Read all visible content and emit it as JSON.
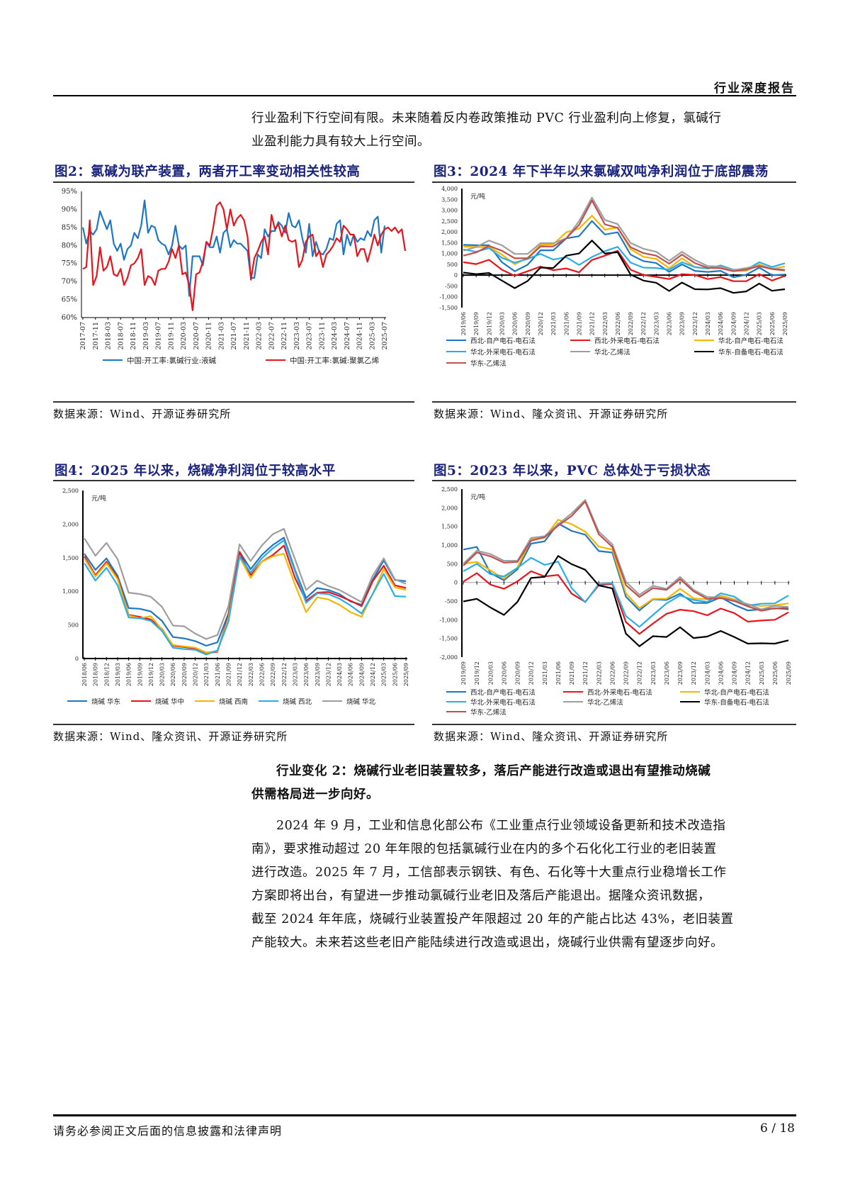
{
  "header": {
    "title": "行业深度报告"
  },
  "intro_paragraph": [
    "行业盈利下行空间有限。未来随着反内卷政策推动 PVC 行业盈利向上修复，氯碱行",
    "业盈利能力具有较大上行空间。"
  ],
  "figures": [
    {
      "id": "fig2",
      "title": "图2：氯碱为联产装置，两者开工率变动相关性较高",
      "source": "数据来源：Wind、开源证券研究所"
    },
    {
      "id": "fig3",
      "title": "图3：2024 年下半年以来氯碱双吨净利润位于底部震荡",
      "source": "数据来源：Wind、隆众资讯、开源证券研究所"
    },
    {
      "id": "fig4",
      "title": "图4：2025 年以来，烧碱净利润位于较高水平",
      "source": "数据来源：Wind、隆众资讯、开源证券研究所"
    },
    {
      "id": "fig5",
      "title": "图5：2023 年以来，PVC 总体处于亏损状态",
      "source": "数据来源：Wind、隆众资讯、开源证券研究所"
    }
  ],
  "section": {
    "heading": [
      "行业变化 2：烧碱行业老旧装置较多，落后产能进行改造或退出有望推动烧碱",
      "供需格局进一步向好。"
    ],
    "body": [
      "2024 年 9 月，工业和信息化部公布《工业重点行业领域设备更新和技术改造指",
      "南》，要求推动超过 20 年年限的包括氯碱行业在内的多个石化化工行业的老旧装置",
      "进行改造。2025 年 7 月，工信部表示钢铁、有色、石化等十大重点行业稳增长工作",
      "方案即将出台，有望进一步推动氯碱行业老旧及落后产能退出。据隆众资讯数据，",
      "截至 2024 年年底，烧碱行业装置投产年限超过 20 年的产能占比达 43%，老旧装置",
      "产能较大。未来若这些老旧产能陆续进行改造或退出，烧碱行业供需有望逐步向好。"
    ]
  },
  "footer": {
    "disclaimer": "请务必参阅正文后面的信息披露和法律声明",
    "page": "6 / 18"
  },
  "chart_data": [
    {
      "id": "fig2",
      "type": "line",
      "title": "氯碱为联产装置，两者开工率变动相关性较高",
      "ylabel": "",
      "ylim": [
        60,
        95
      ],
      "yticks": [
        "60%",
        "65%",
        "70%",
        "75%",
        "80%",
        "85%",
        "90%",
        "95%"
      ],
      "categories": [
        "2017-07",
        "2017-11",
        "2018-03",
        "2018-07",
        "2018-11",
        "2019-03",
        "2019-07",
        "2019-11",
        "2020-03",
        "2020-07",
        "2020-11",
        "2021-03",
        "2021-07",
        "2021-11",
        "2022-03",
        "2022-07",
        "2022-11",
        "2023-03",
        "2023-07",
        "2023-11",
        "2024-03",
        "2024-07",
        "2024-11",
        "2025-03",
        "2025-07"
      ],
      "legend_position": "bottom",
      "series": [
        {
          "name": "中国:开工率:氯碱行业:液碱",
          "color": "#1f77c4",
          "values": [
            85,
            80.5,
            84,
            83,
            84.5,
            89.5,
            87,
            84.5,
            87,
            80.5,
            78.5,
            80.5,
            76,
            79,
            80,
            83.5,
            82,
            85.5,
            92.5,
            83.5,
            85.5,
            85,
            81.5,
            80.5,
            80,
            77.5,
            80,
            85.5,
            80,
            79,
            80,
            66,
            77,
            77,
            77,
            74.5,
            81,
            79.5,
            79.5,
            82.5,
            78,
            83.5,
            84.5,
            79.5,
            81.5,
            80.5,
            80.5,
            79.5,
            78.5,
            71,
            71,
            77.5,
            76.5,
            84.5,
            82.5,
            84,
            84,
            86.5,
            85.5,
            83.5,
            89,
            85.5,
            85,
            87,
            82,
            78,
            86,
            77,
            81,
            78,
            77.5,
            79,
            82,
            81.5,
            86,
            87,
            77.5,
            83,
            80,
            83,
            81,
            82,
            81.5,
            84,
            82.5,
            87,
            88,
            78,
            85.5
          ]
        },
        {
          "name": "中国:开工率:氯碱:聚氯乙烯",
          "color": "#e8141c",
          "values": [
            73.5,
            74,
            87,
            69,
            71.5,
            79.5,
            73,
            74,
            77,
            72,
            71.5,
            73.5,
            69,
            71,
            74.5,
            75,
            76.5,
            79,
            69,
            71.5,
            71,
            69,
            73,
            73.5,
            73.5,
            75.5,
            79,
            76.5,
            80,
            72,
            72.5,
            69,
            62,
            72,
            72.5,
            75.5,
            81,
            80,
            85,
            91,
            92,
            90,
            84.5,
            90,
            85.5,
            87.5,
            88.5,
            87,
            82.5,
            70.5,
            76.5,
            78.5,
            81,
            82.5,
            77.5,
            88.5,
            84.5,
            86,
            82.5,
            85.5,
            81.5,
            81,
            81.5,
            74,
            76,
            81,
            82.5,
            83,
            77,
            78.5,
            74,
            77.5,
            78.5,
            80,
            82,
            81,
            85.5,
            84.5,
            83,
            83,
            77,
            79,
            79,
            75.5,
            79,
            83,
            80,
            83,
            84.5,
            85,
            84,
            85,
            83.5,
            84.5,
            78.5
          ]
        }
      ]
    },
    {
      "id": "fig3",
      "type": "line",
      "title": "2024 年下半年以来氯碱双吨净利润位于底部震荡",
      "ylabel": "元/吨",
      "ylim": [
        -1500,
        4000
      ],
      "yticks": [
        "-1,500",
        "-1,000",
        "-500",
        "0",
        "500",
        "1,000",
        "1,500",
        "2,000",
        "2,500",
        "3,000",
        "3,500",
        "4,000"
      ],
      "categories": [
        "2019/06",
        "2019/09",
        "2019/12",
        "2020/03",
        "2020/06",
        "2020/09",
        "2020/12",
        "2021/03",
        "2021/06",
        "2021/09",
        "2021/12",
        "2022/03",
        "2022/06",
        "2022/09",
        "2022/12",
        "2023/03",
        "2023/06",
        "2023/09",
        "2023/12",
        "2024/03",
        "2024/06",
        "2024/09",
        "2024/12",
        "2025/03",
        "2025/06",
        "2025/09"
      ],
      "legend_position": "bottom",
      "series": [
        {
          "name": "西北-自产电石-电石法",
          "color": "#1f77c4",
          "values": [
            1400,
            1380,
            1380,
            600,
            180,
            480,
            1150,
            1150,
            1700,
            1800,
            2500,
            1880,
            1980,
            950,
            650,
            560,
            150,
            500,
            200,
            150,
            200,
            -100,
            20,
            350,
            0,
            30
          ]
        },
        {
          "name": "西北-外采电石-电石法",
          "color": "#e8141c",
          "values": [
            600,
            510,
            710,
            250,
            -30,
            180,
            400,
            230,
            310,
            130,
            700,
            900,
            1130,
            250,
            10,
            -80,
            -180,
            50,
            10,
            -180,
            -90,
            -280,
            -280,
            50,
            -250,
            -30
          ]
        },
        {
          "name": "华北-自产电石-电石法",
          "color": "#f7b500",
          "values": [
            1330,
            1300,
            1300,
            950,
            500,
            800,
            1400,
            1430,
            1980,
            2150,
            2750,
            2100,
            2200,
            1200,
            850,
            750,
            320,
            780,
            370,
            300,
            400,
            200,
            200,
            500,
            300,
            400
          ]
        },
        {
          "name": "华北-外采电石-电石法",
          "color": "#29aee8",
          "values": [
            1190,
            1080,
            1250,
            800,
            580,
            750,
            980,
            720,
            830,
            470,
            840,
            1110,
            1310,
            580,
            350,
            330,
            250,
            600,
            370,
            310,
            450,
            250,
            250,
            600,
            380,
            550
          ]
        },
        {
          "name": "华北-乙烯法",
          "color": "#9e9e9e",
          "values": [
            1130,
            1300,
            1600,
            1380,
            980,
            980,
            1480,
            1480,
            1700,
            2490,
            3580,
            2550,
            2360,
            1490,
            1220,
            1080,
            660,
            1080,
            700,
            420,
            400,
            230,
            330,
            450,
            300,
            250
          ]
        },
        {
          "name": "华东-自备电石-电石法",
          "color": "#000000",
          "values": [
            120,
            50,
            100,
            -250,
            -600,
            -270,
            350,
            330,
            900,
            1000,
            1600,
            1000,
            1060,
            30,
            -250,
            -350,
            -730,
            -340,
            -650,
            -660,
            -600,
            -820,
            -750,
            -390,
            -720,
            -650
          ]
        },
        {
          "name": "华东-乙烯法",
          "color": "#c0504d",
          "values": [
            900,
            1050,
            1350,
            1130,
            780,
            780,
            1330,
            1330,
            1700,
            2320,
            3450,
            2350,
            2180,
            1290,
            1020,
            900,
            530,
            950,
            560,
            340,
            320,
            180,
            260,
            420,
            280,
            220
          ]
        }
      ]
    },
    {
      "id": "fig4",
      "type": "line",
      "title": "2025 年以来，烧碱净利润位于较高水平",
      "ylabel": "元/吨",
      "ylim": [
        0,
        2500
      ],
      "yticks": [
        "0",
        "500",
        "1,000",
        "1,500",
        "2,000",
        "2,500"
      ],
      "categories": [
        "2018/06",
        "2018/09",
        "2018/12",
        "2019/03",
        "2019/06",
        "2019/09",
        "2019/12",
        "2020/03",
        "2020/06",
        "2020/09",
        "2020/12",
        "2021/03",
        "2021/06",
        "2021/09",
        "2021/12",
        "2022/03",
        "2022/06",
        "2022/09",
        "2022/12",
        "2023/03",
        "2023/06",
        "2023/09",
        "2023/12",
        "2024/03",
        "2024/06",
        "2024/09",
        "2024/12",
        "2025/03",
        "2025/06",
        "2025/09"
      ],
      "legend_position": "bottom",
      "series": [
        {
          "name": "烧碱 华东",
          "color": "#1f77c4",
          "values": [
            1560,
            1320,
            1490,
            1230,
            750,
            740,
            700,
            560,
            320,
            300,
            260,
            190,
            240,
            670,
            1590,
            1330,
            1540,
            1690,
            1800,
            1320,
            900,
            1050,
            1020,
            960,
            850,
            800,
            1170,
            1460,
            1170,
            1150
          ]
        },
        {
          "name": "烧碱 华中",
          "color": "#e8141c",
          "values": [
            1520,
            1240,
            1440,
            1200,
            650,
            620,
            580,
            440,
            190,
            170,
            150,
            80,
            100,
            640,
            1580,
            1240,
            1440,
            1540,
            1680,
            1200,
            860,
            980,
            990,
            930,
            860,
            780,
            1150,
            1380,
            1090,
            1050
          ]
        },
        {
          "name": "烧碱 西南",
          "color": "#f7b500",
          "values": [
            1490,
            1220,
            1420,
            1180,
            640,
            600,
            630,
            430,
            200,
            180,
            160,
            90,
            110,
            600,
            1510,
            1200,
            1440,
            1520,
            1560,
            1100,
            690,
            910,
            880,
            800,
            690,
            620,
            960,
            1330,
            1060,
            1020
          ]
        },
        {
          "name": "烧碱 西北",
          "color": "#29aee8",
          "values": [
            1420,
            1160,
            1350,
            1090,
            610,
            600,
            560,
            410,
            160,
            140,
            130,
            60,
            120,
            550,
            1520,
            1280,
            1490,
            1640,
            1760,
            1300,
            830,
            970,
            960,
            890,
            790,
            670,
            960,
            1260,
            930,
            920
          ]
        },
        {
          "name": "烧碱 华北",
          "color": "#9e9e9e",
          "values": [
            1790,
            1530,
            1720,
            1480,
            980,
            960,
            920,
            770,
            490,
            480,
            370,
            290,
            350,
            780,
            1700,
            1450,
            1680,
            1850,
            1930,
            1480,
            1020,
            1160,
            1080,
            1020,
            930,
            840,
            1230,
            1490,
            1180,
            1110
          ]
        }
      ]
    },
    {
      "id": "fig5",
      "type": "line",
      "title": "2023 年以来，PVC 总体处于亏损状态",
      "ylabel": "元/吨",
      "ylim": [
        -2000,
        2500
      ],
      "yticks": [
        "-2,000",
        "-1,500",
        "-1,000",
        "-500",
        "0",
        "500",
        "1,000",
        "1,500",
        "2,000",
        "2,500"
      ],
      "categories": [
        "2019/09",
        "2019/12",
        "2020/03",
        "2020/06",
        "2020/09",
        "2020/12",
        "2021/03",
        "2021/06",
        "2021/09",
        "2021/12",
        "2022/03",
        "2022/06",
        "2022/09",
        "2022/12",
        "2023/03",
        "2023/06",
        "2023/09",
        "2023/12",
        "2024/03",
        "2024/06",
        "2024/09",
        "2024/12",
        "2025/03",
        "2025/06",
        "2025/09"
      ],
      "legend_position": "bottom",
      "series": [
        {
          "name": "西北-自产电石-电石法",
          "color": "#1f77c4",
          "values": [
            880,
            950,
            250,
            60,
            350,
            1040,
            1100,
            1580,
            1380,
            1280,
            840,
            800,
            -380,
            -750,
            -450,
            -470,
            -300,
            -550,
            -550,
            -400,
            -600,
            -750,
            -720,
            -700,
            -680
          ]
        },
        {
          "name": "西北-外采电石-电石法",
          "color": "#e8141c",
          "values": [
            20,
            250,
            -60,
            -170,
            30,
            300,
            160,
            200,
            -300,
            -520,
            -70,
            -40,
            -1060,
            -1380,
            -1100,
            -840,
            -730,
            -770,
            -880,
            -700,
            -820,
            -1050,
            -1020,
            -1000,
            -800
          ]
        },
        {
          "name": "华北-自产电石-电石法",
          "color": "#f7b500",
          "values": [
            500,
            550,
            320,
            100,
            400,
            1150,
            1200,
            1680,
            1560,
            1360,
            960,
            880,
            -290,
            -690,
            -440,
            -440,
            -170,
            -430,
            -450,
            -350,
            -450,
            -590,
            -630,
            -610,
            -560
          ]
        },
        {
          "name": "华北-外采电石-电石法",
          "color": "#29aee8",
          "values": [
            300,
            500,
            220,
            160,
            390,
            660,
            470,
            560,
            -150,
            -530,
            -40,
            -20,
            -900,
            -1190,
            -870,
            -560,
            -350,
            -470,
            -520,
            -290,
            -380,
            -620,
            -570,
            -560,
            -350
          ]
        },
        {
          "name": "华北-乙烯法",
          "color": "#9e9e9e",
          "values": [
            500,
            850,
            760,
            580,
            580,
            1190,
            1240,
            1560,
            1850,
            2210,
            1360,
            1020,
            20,
            -330,
            -90,
            -170,
            150,
            -200,
            -390,
            -400,
            -480,
            -580,
            -720,
            -630,
            -660
          ]
        },
        {
          "name": "华东-自备电石-电石法",
          "color": "#000000",
          "values": [
            -510,
            -440,
            -670,
            -870,
            -520,
            120,
            150,
            710,
            490,
            340,
            -80,
            -160,
            -1370,
            -1710,
            -1440,
            -1460,
            -1200,
            -1490,
            -1450,
            -1300,
            -1460,
            -1640,
            -1630,
            -1640,
            -1550
          ]
        },
        {
          "name": "华东-乙烯法",
          "color": "#c0504d",
          "values": [
            450,
            800,
            700,
            530,
            550,
            1120,
            1210,
            1520,
            1780,
            2170,
            1290,
            950,
            -70,
            -390,
            -150,
            -200,
            90,
            -240,
            -440,
            -420,
            -500,
            -640,
            -760,
            -690,
            -720
          ]
        }
      ]
    }
  ]
}
